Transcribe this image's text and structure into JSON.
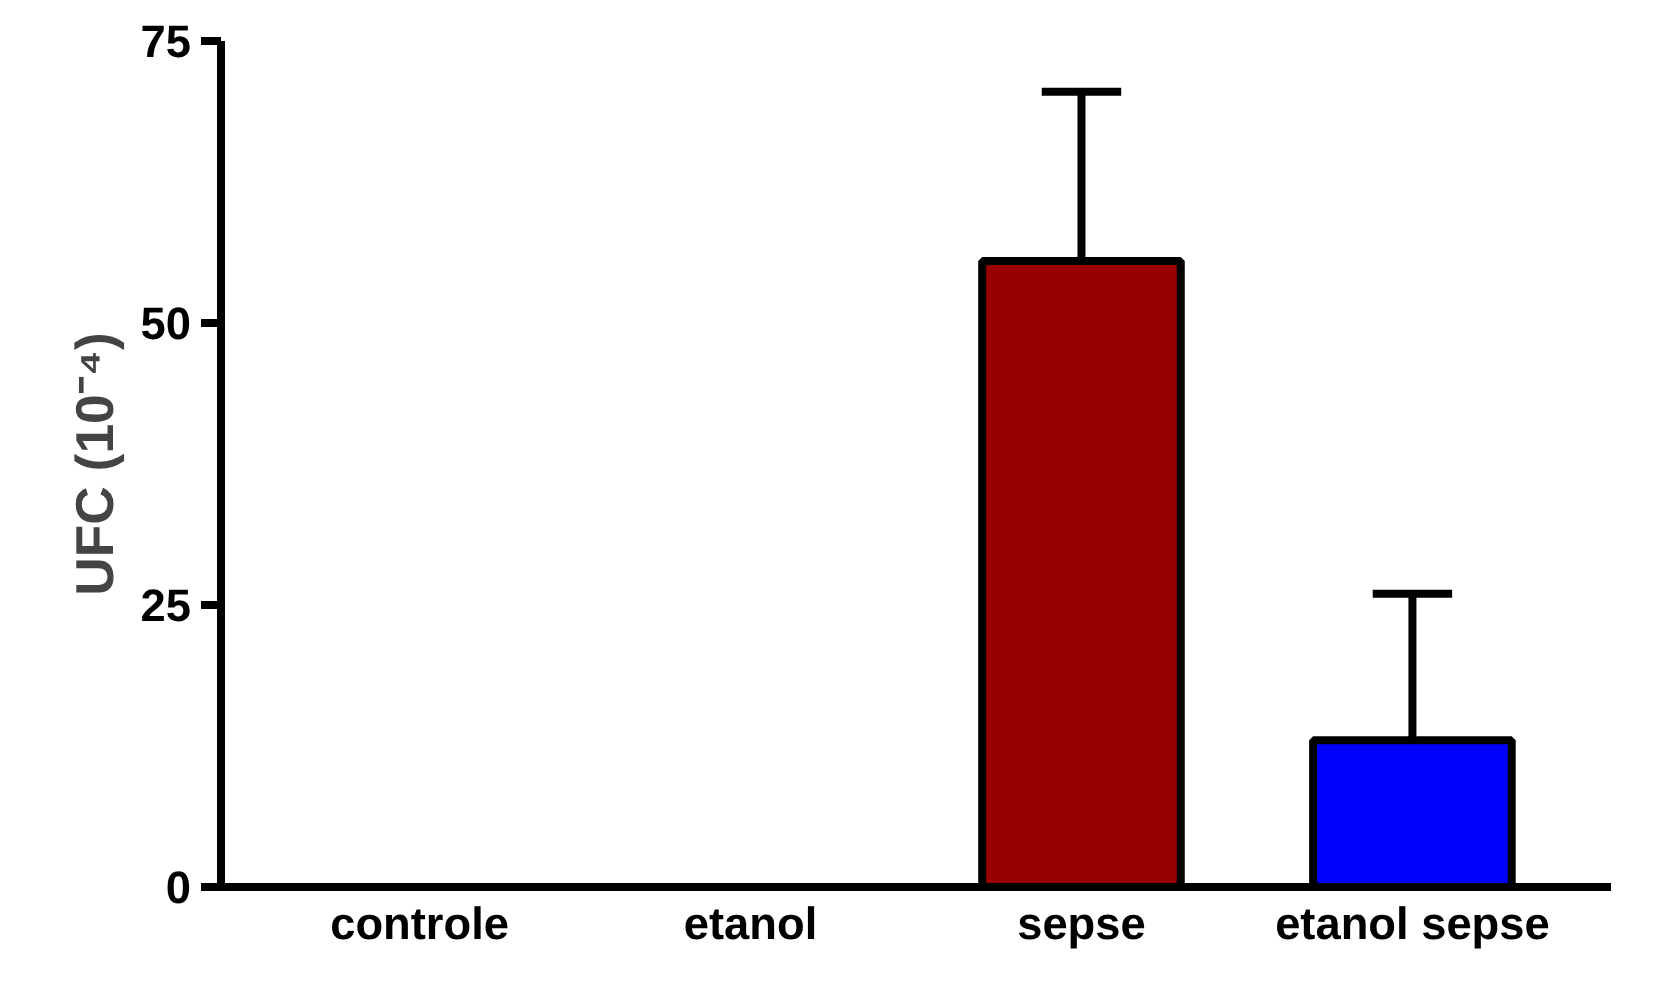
{
  "chart_data": {
    "type": "bar",
    "ylabel": "UFC (10⁻⁴)",
    "categories": [
      "controle",
      "etanol",
      "sepse",
      "etanol sepse"
    ],
    "values": [
      0,
      0,
      55.5,
      13
    ],
    "colors": [
      "#000000",
      "#000000",
      "#990000",
      "#0000ff"
    ],
    "errors": [
      null,
      null,
      [
        55.5,
        70.5
      ],
      [
        13,
        26
      ]
    ],
    "ylim": [
      0,
      75
    ],
    "yticks": [
      0,
      25,
      50,
      75
    ],
    "grid": false
  }
}
